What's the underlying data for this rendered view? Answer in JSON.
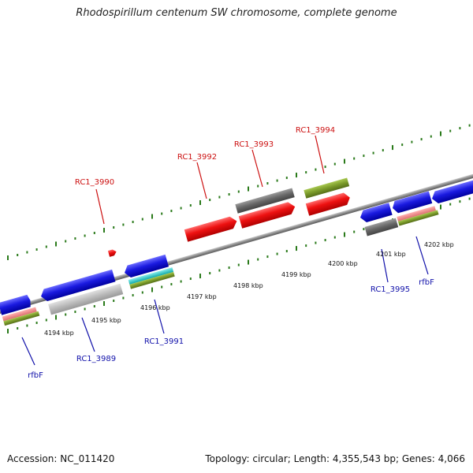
{
  "title": "Rhodospirillum centenum SW chromosome, complete genome",
  "footer": {
    "accession": "Accession: NC_011420",
    "summary": "Topology: circular; Length: 4,355,543 bp; Genes: 4,066"
  },
  "colors": {
    "backbone": "#8a8a8a",
    "tick": "#2a7a1a",
    "label_red": "#cc1111",
    "label_blue": "#1111aa",
    "gene_red": "#ee1111",
    "gene_blue": "#1a1ae0",
    "gene_gray": "#666666",
    "gene_lightgray": "#bbbbbb",
    "gene_green": "#7a9a2a",
    "gene_pink": "#ee8888",
    "gene_cyan": "#22cccc"
  },
  "scale_labels": [
    "4194 kbp",
    "4195 kbp",
    "4196 kbp",
    "4197 kbp",
    "4198 kbp",
    "4199 kbp",
    "4200 kbp",
    "4201 kbp",
    "4202 kbp"
  ],
  "features": {
    "top": [
      {
        "label": "RC1_3990",
        "color": "red"
      },
      {
        "label": "RC1_3992",
        "color": "red"
      },
      {
        "label": "RC1_3993",
        "color": "red"
      },
      {
        "label": "RC1_3994",
        "color": "red"
      }
    ],
    "bottom": [
      {
        "label": "rfbF",
        "color": "blue"
      },
      {
        "label": "RC1_3989",
        "color": "blue"
      },
      {
        "label": "RC1_3991",
        "color": "blue"
      },
      {
        "label": "RC1_3995",
        "color": "blue"
      },
      {
        "label": "rfbF",
        "color": "blue"
      }
    ]
  }
}
